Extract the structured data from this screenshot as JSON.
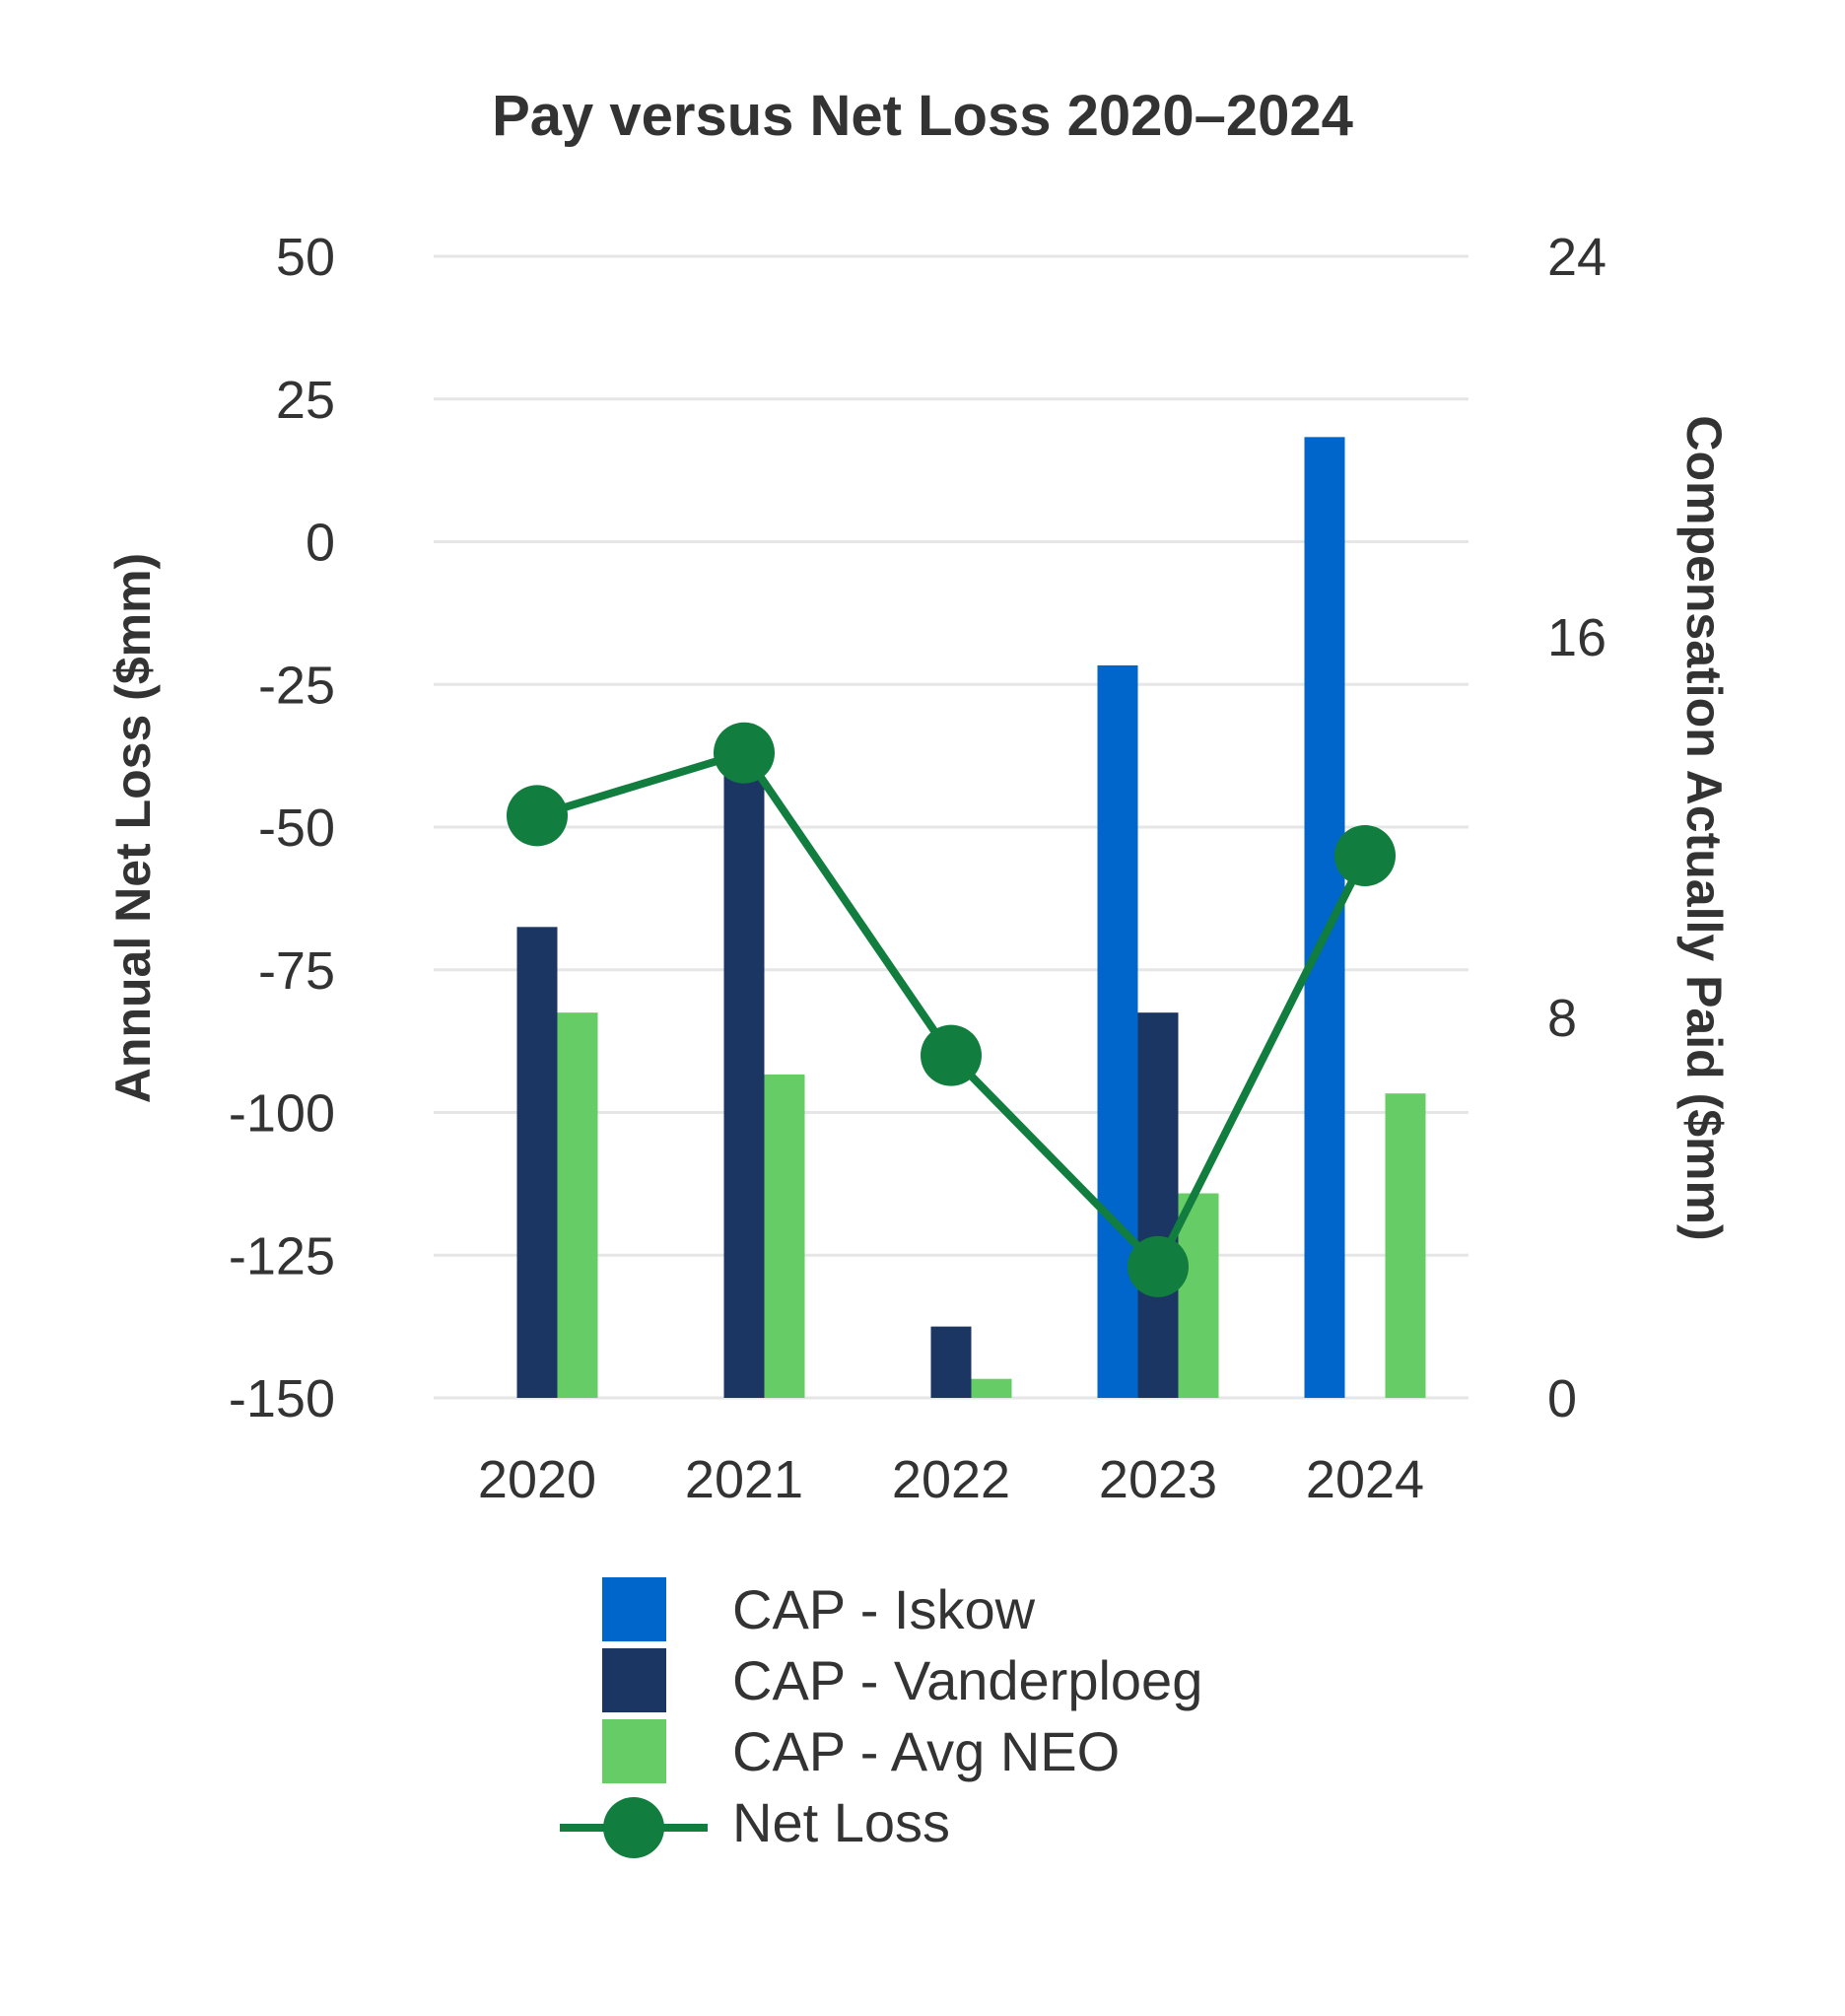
{
  "chart_data": {
    "type": "bar",
    "title": "Pay versus Net Loss 2020–2024",
    "categories": [
      "2020",
      "2021",
      "2022",
      "2023",
      "2024"
    ],
    "left_axis": {
      "label": "Annual Net Loss ($mm)",
      "ylim": [
        -150,
        50
      ],
      "ticks": [
        50,
        25,
        0,
        -25,
        -50,
        -75,
        -100,
        -125,
        -150
      ]
    },
    "right_axis": {
      "label": "Compensation Actually Paid ($mm)",
      "ylim": [
        0,
        24
      ],
      "ticks": [
        24,
        16,
        8,
        0
      ]
    },
    "series": [
      {
        "name": "CAP - Iskow",
        "type": "bar",
        "axis": "right",
        "color": "#0066cc",
        "values": [
          null,
          null,
          null,
          15.4,
          20.2
        ]
      },
      {
        "name": "CAP - Vanderploeg",
        "type": "bar",
        "axis": "right",
        "color": "#1c3664",
        "values": [
          9.9,
          13.4,
          1.5,
          8.1,
          null
        ]
      },
      {
        "name": "CAP - Avg NEO",
        "type": "bar",
        "axis": "right",
        "color": "#66cc66",
        "values": [
          8.1,
          6.8,
          0.4,
          4.3,
          6.4
        ]
      },
      {
        "name": "Net Loss",
        "type": "line",
        "axis": "left",
        "color": "#117d3e",
        "values": [
          -48,
          -37,
          -90,
          -127,
          -55
        ]
      }
    ],
    "grid": true,
    "legend_position": "bottom"
  }
}
